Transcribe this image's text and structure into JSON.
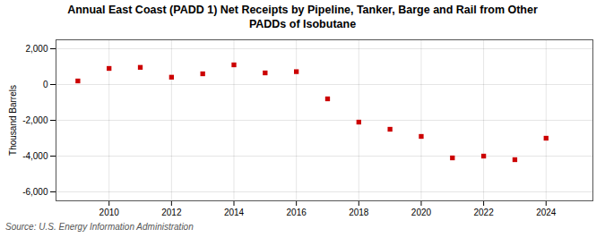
{
  "chart_data": {
    "type": "scatter",
    "title": "Annual East Coast (PADD 1) Net Receipts by Pipeline, Tanker, Barge and Rail from Other\nPADDs of Isobutane",
    "ylabel": "Thousand Barrels",
    "source": "Source: U.S. Energy Information Administration",
    "x": [
      2009,
      2010,
      2011,
      2012,
      2013,
      2014,
      2015,
      2016,
      2017,
      2018,
      2019,
      2020,
      2021,
      2022,
      2023,
      2024
    ],
    "values": [
      200,
      900,
      960,
      410,
      600,
      1100,
      650,
      720,
      -800,
      -2100,
      -2500,
      -2900,
      -4100,
      -4000,
      -4200,
      -3000
    ],
    "color": "#cc0000",
    "marker": "square",
    "xlim": [
      2008.3,
      2025.5
    ],
    "ylim": [
      -6500,
      2500
    ],
    "xticks": [
      2010,
      2012,
      2014,
      2016,
      2018,
      2020,
      2022,
      2024
    ],
    "yticks": [
      {
        "value": -6000,
        "label": "-6,000"
      },
      {
        "value": -4000,
        "label": "-4,000"
      },
      {
        "value": -2000,
        "label": "-2,000"
      },
      0,
      {
        "value": 2000,
        "label": "2,000"
      }
    ],
    "grid": true
  }
}
